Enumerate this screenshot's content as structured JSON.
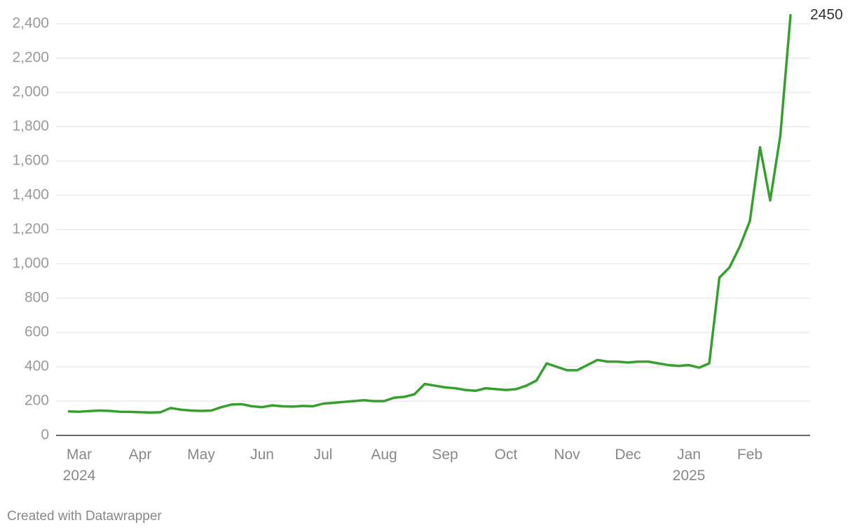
{
  "chart_data": {
    "type": "line",
    "categories": [
      null,
      "Mar 2024",
      null,
      null,
      null,
      null,
      null,
      "Apr",
      null,
      null,
      null,
      null,
      null,
      "May",
      null,
      null,
      null,
      null,
      null,
      "Jun",
      null,
      null,
      null,
      null,
      null,
      "Jul",
      null,
      null,
      null,
      null,
      null,
      "Aug",
      null,
      null,
      null,
      null,
      null,
      "Sep",
      null,
      null,
      null,
      null,
      null,
      "Oct",
      null,
      null,
      null,
      null,
      null,
      "Nov",
      null,
      null,
      null,
      null,
      null,
      "Dec",
      null,
      null,
      null,
      null,
      null,
      "Jan 2025",
      null,
      null,
      null,
      null,
      null,
      "Feb",
      null,
      null,
      null,
      null
    ],
    "values": [
      140,
      138,
      142,
      145,
      143,
      138,
      137,
      135,
      133,
      135,
      160,
      150,
      145,
      143,
      145,
      165,
      180,
      182,
      170,
      165,
      175,
      170,
      168,
      172,
      170,
      185,
      190,
      195,
      200,
      205,
      200,
      200,
      220,
      225,
      240,
      300,
      290,
      280,
      275,
      265,
      260,
      275,
      270,
      265,
      270,
      290,
      320,
      420,
      400,
      380,
      380,
      410,
      440,
      430,
      430,
      425,
      430,
      430,
      420,
      410,
      405,
      410,
      395,
      420,
      920,
      980,
      1100,
      1250,
      1680,
      1370,
      1750,
      2450
    ],
    "color": "#35a02e",
    "ylim": [
      0,
      2400
    ],
    "yticks": [
      0,
      200,
      400,
      600,
      800,
      {
        "value": 1000,
        "label": "1,000"
      },
      {
        "value": 1200,
        "label": "1,200"
      },
      {
        "value": 1400,
        "label": "1,400"
      },
      {
        "value": 1600,
        "label": "1,600"
      },
      {
        "value": 1800,
        "label": "1,800"
      },
      {
        "value": 2000,
        "label": "2,000"
      },
      {
        "value": 2200,
        "label": "2,200"
      },
      {
        "value": 2400,
        "label": "2,400"
      }
    ],
    "grid": true,
    "credit": "Created with Datawrapper"
  }
}
